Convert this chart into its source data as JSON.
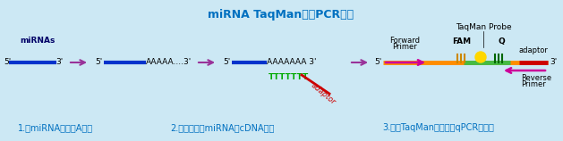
{
  "title": "miRNA TaqMan定量PCR流程",
  "title_color": "#0070C0",
  "bg_color": "#CCE8F4",
  "step1_label": "1.对miRNA进行加A反应",
  "step2_label": "2.反转录获得miRNA的cDNA产物",
  "step3_label": "3.利用TaqMan探针进行qPCR检测。",
  "label_color": "#0070C0",
  "mirna_label": "miRNAs",
  "line_blue": "#0033CC",
  "line_orange": "#FF8C00",
  "line_green": "#00AA00",
  "line_red": "#CC0000",
  "arrow_purple": "#993399",
  "fam_color": "#FFD700",
  "adaptor_color": "#CC0000",
  "forward_primer_color": "#CC0099",
  "reverse_primer_color": "#CC0099",
  "probe_green": "#006600",
  "probe_orange": "#CC8800"
}
